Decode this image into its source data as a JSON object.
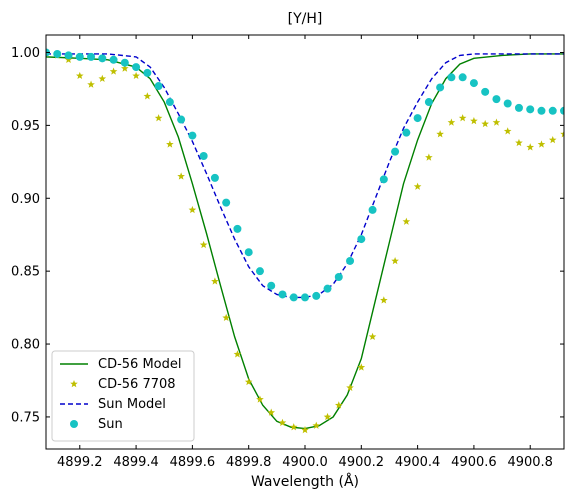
{
  "chart_data": {
    "type": "line",
    "title": "[Y/H]",
    "xlabel": "Wavelength (Å)",
    "ylabel": "",
    "xlim": [
      4899.08,
      4900.92
    ],
    "ylim": [
      0.728,
      1.012
    ],
    "x_ticks": [
      4899.2,
      4899.4,
      4899.6,
      4899.8,
      4900.0,
      4900.2,
      4900.4,
      4900.6,
      4900.8
    ],
    "x_tick_labels": [
      "4899.2",
      "4899.4",
      "4899.6",
      "4899.8",
      "4900.0",
      "4900.2",
      "4900.4",
      "4900.6",
      "4900.8"
    ],
    "y_ticks": [
      0.75,
      0.8,
      0.85,
      0.9,
      0.95,
      1.0
    ],
    "y_tick_labels": [
      "0.75",
      "0.80",
      "0.85",
      "0.90",
      "0.95",
      "1.00"
    ],
    "legend_position": "lower-left",
    "series": [
      {
        "name": "CD-56 Model",
        "style": "line",
        "color": "#008000",
        "x": [
          4899.08,
          4899.2,
          4899.3,
          4899.4,
          4899.45,
          4899.5,
          4899.55,
          4899.6,
          4899.65,
          4899.7,
          4899.75,
          4899.8,
          4899.85,
          4899.9,
          4899.95,
          4900.0,
          4900.05,
          4900.1,
          4900.15,
          4900.2,
          4900.25,
          4900.3,
          4900.35,
          4900.4,
          4900.45,
          4900.5,
          4900.55,
          4900.6,
          4900.7,
          4900.8,
          4900.92
        ],
        "y": [
          0.997,
          0.996,
          0.995,
          0.99,
          0.982,
          0.966,
          0.942,
          0.91,
          0.876,
          0.84,
          0.805,
          0.776,
          0.758,
          0.747,
          0.743,
          0.742,
          0.744,
          0.75,
          0.765,
          0.79,
          0.83,
          0.87,
          0.91,
          0.94,
          0.965,
          0.982,
          0.992,
          0.996,
          0.998,
          0.999,
          0.999
        ]
      },
      {
        "name": "CD-56 7708",
        "style": "star",
        "color": "#bfbf00",
        "x": [
          4899.08,
          4899.12,
          4899.16,
          4899.2,
          4899.24,
          4899.28,
          4899.32,
          4899.36,
          4899.4,
          4899.44,
          4899.48,
          4899.52,
          4899.56,
          4899.6,
          4899.64,
          4899.68,
          4899.72,
          4899.76,
          4899.8,
          4899.84,
          4899.88,
          4899.92,
          4899.96,
          4900.0,
          4900.04,
          4900.08,
          4900.12,
          4900.16,
          4900.2,
          4900.24,
          4900.28,
          4900.32,
          4900.36,
          4900.4,
          4900.44,
          4900.48,
          4900.52,
          4900.56,
          4900.6,
          4900.64,
          4900.68,
          4900.72,
          4900.76,
          4900.8,
          4900.84,
          4900.88,
          4900.92
        ],
        "y": [
          0.999,
          0.998,
          0.995,
          0.984,
          0.978,
          0.982,
          0.987,
          0.989,
          0.984,
          0.97,
          0.955,
          0.937,
          0.915,
          0.892,
          0.868,
          0.843,
          0.818,
          0.793,
          0.774,
          0.762,
          0.753,
          0.746,
          0.743,
          0.741,
          0.744,
          0.75,
          0.758,
          0.77,
          0.784,
          0.805,
          0.83,
          0.857,
          0.884,
          0.908,
          0.928,
          0.944,
          0.952,
          0.955,
          0.953,
          0.951,
          0.952,
          0.946,
          0.938,
          0.935,
          0.937,
          0.94,
          0.944
        ]
      },
      {
        "name": "Sun Model",
        "style": "dashed",
        "color": "#0000cc",
        "x": [
          4899.08,
          4899.2,
          4899.3,
          4899.4,
          4899.45,
          4899.5,
          4899.55,
          4899.6,
          4899.65,
          4899.7,
          4899.75,
          4899.8,
          4899.85,
          4899.9,
          4899.95,
          4900.0,
          4900.05,
          4900.1,
          4900.15,
          4900.2,
          4900.25,
          4900.3,
          4900.35,
          4900.4,
          4900.45,
          4900.5,
          4900.55,
          4900.6,
          4900.7,
          4900.8,
          4900.92
        ],
        "y": [
          0.999,
          0.999,
          0.999,
          0.997,
          0.99,
          0.976,
          0.958,
          0.939,
          0.917,
          0.894,
          0.872,
          0.853,
          0.84,
          0.834,
          0.832,
          0.832,
          0.834,
          0.841,
          0.855,
          0.875,
          0.9,
          0.925,
          0.948,
          0.966,
          0.982,
          0.993,
          0.998,
          0.999,
          0.999,
          0.999,
          0.999
        ]
      },
      {
        "name": "Sun",
        "style": "dot",
        "color": "#17c3c3",
        "x": [
          4899.08,
          4899.12,
          4899.16,
          4899.2,
          4899.24,
          4899.28,
          4899.32,
          4899.36,
          4899.4,
          4899.44,
          4899.48,
          4899.52,
          4899.56,
          4899.6,
          4899.64,
          4899.68,
          4899.72,
          4899.76,
          4899.8,
          4899.84,
          4899.88,
          4899.92,
          4899.96,
          4900.0,
          4900.04,
          4900.08,
          4900.12,
          4900.16,
          4900.2,
          4900.24,
          4900.28,
          4900.32,
          4900.36,
          4900.4,
          4900.44,
          4900.48,
          4900.52,
          4900.56,
          4900.6,
          4900.64,
          4900.68,
          4900.72,
          4900.76,
          4900.8,
          4900.84,
          4900.88,
          4900.92
        ],
        "y": [
          1.0,
          0.999,
          0.998,
          0.997,
          0.997,
          0.996,
          0.995,
          0.993,
          0.99,
          0.986,
          0.977,
          0.966,
          0.954,
          0.943,
          0.929,
          0.914,
          0.897,
          0.879,
          0.863,
          0.85,
          0.84,
          0.834,
          0.832,
          0.832,
          0.833,
          0.838,
          0.846,
          0.857,
          0.872,
          0.892,
          0.913,
          0.932,
          0.945,
          0.955,
          0.966,
          0.976,
          0.983,
          0.983,
          0.979,
          0.973,
          0.968,
          0.965,
          0.962,
          0.961,
          0.96,
          0.96,
          0.96
        ]
      }
    ]
  }
}
